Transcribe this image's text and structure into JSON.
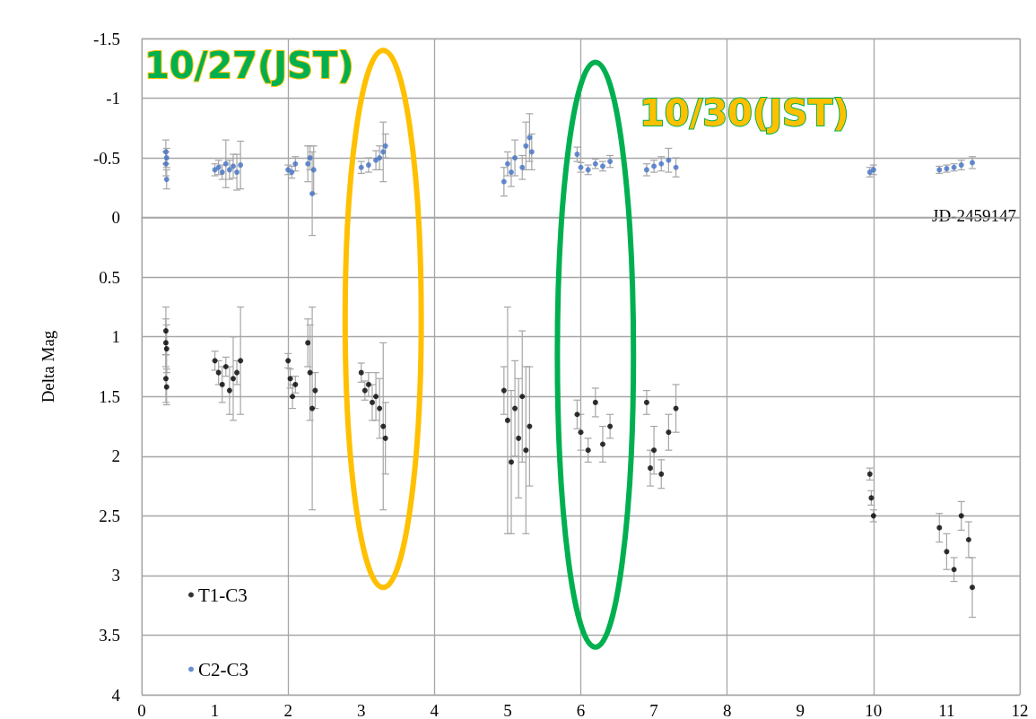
{
  "chart_data": {
    "type": "scatter",
    "xlabel": "JD-2459147",
    "ylabel": "Delta Mag",
    "annotations": [
      "10/27(JST)",
      "10/30(JST)"
    ],
    "xlim": [
      0,
      12
    ],
    "xticks": [
      0,
      1,
      2,
      3,
      4,
      5,
      6,
      7,
      8,
      9,
      10,
      11,
      12
    ],
    "ylim": [
      4,
      -1.5
    ],
    "yticks": [
      -1.5,
      -1,
      -0.5,
      0,
      0.5,
      1,
      1.5,
      2,
      2.5,
      3,
      3.5,
      4
    ],
    "grid": true,
    "legend": "bottom left",
    "marker": "circle",
    "series": [
      {
        "name": "T1-C3",
        "color": "#000000",
        "x": [
          0.33,
          0.33,
          0.34,
          0.33,
          0.34,
          1.0,
          1.05,
          1.1,
          1.15,
          1.2,
          1.25,
          1.3,
          1.35,
          2.0,
          2.03,
          2.06,
          2.1,
          2.27,
          2.3,
          2.33,
          2.37,
          3.0,
          3.05,
          3.1,
          3.15,
          3.2,
          3.25,
          3.3,
          3.33,
          4.95,
          5.0,
          5.05,
          5.1,
          5.15,
          5.2,
          5.25,
          5.3,
          5.95,
          6.0,
          6.1,
          6.2,
          6.3,
          6.4,
          6.9,
          6.95,
          7.0,
          7.1,
          7.2,
          7.3,
          9.95,
          9.97,
          10.0,
          10.9,
          11.0,
          11.1,
          11.2,
          11.3,
          11.35
        ],
        "values": [
          0.95,
          1.05,
          1.1,
          1.35,
          1.42,
          1.2,
          1.3,
          1.4,
          1.25,
          1.45,
          1.35,
          1.3,
          1.2,
          1.2,
          1.35,
          1.5,
          1.4,
          1.05,
          1.3,
          1.6,
          1.45,
          1.3,
          1.45,
          1.4,
          1.55,
          1.5,
          1.6,
          1.75,
          1.85,
          1.45,
          1.7,
          2.05,
          1.6,
          1.85,
          1.5,
          1.95,
          1.75,
          1.65,
          1.8,
          1.95,
          1.55,
          1.9,
          1.75,
          1.55,
          2.1,
          1.95,
          2.15,
          1.8,
          1.6,
          2.15,
          2.35,
          2.5,
          2.6,
          2.8,
          2.95,
          2.5,
          2.7,
          3.1
        ],
        "errors": [
          0.2,
          0.2,
          0.2,
          0.2,
          0.15,
          0.08,
          0.1,
          0.15,
          0.08,
          0.2,
          0.35,
          0.1,
          0.45,
          0.06,
          0.08,
          0.1,
          0.07,
          0.2,
          0.4,
          0.85,
          0.15,
          0.08,
          0.08,
          0.1,
          0.15,
          0.2,
          0.25,
          0.7,
          0.3,
          0.2,
          0.95,
          0.6,
          0.4,
          0.5,
          0.55,
          0.7,
          0.5,
          0.12,
          0.15,
          0.1,
          0.12,
          0.15,
          0.1,
          0.1,
          0.15,
          0.2,
          0.12,
          0.15,
          0.2,
          0.05,
          0.06,
          0.05,
          0.12,
          0.15,
          0.1,
          0.12,
          0.15,
          0.25
        ]
      },
      {
        "name": "C2-C3",
        "color": "#4472c4",
        "x": [
          0.33,
          0.34,
          0.33,
          0.34,
          1.0,
          1.05,
          1.1,
          1.15,
          1.2,
          1.25,
          1.3,
          1.35,
          2.0,
          2.05,
          2.1,
          2.27,
          2.3,
          2.33,
          2.35,
          3.0,
          3.1,
          3.2,
          3.25,
          3.3,
          3.33,
          4.95,
          5.0,
          5.05,
          5.1,
          5.2,
          5.25,
          5.3,
          5.33,
          5.95,
          6.0,
          6.1,
          6.2,
          6.3,
          6.4,
          6.9,
          7.0,
          7.1,
          7.2,
          7.3,
          9.95,
          10.0,
          10.9,
          11.0,
          11.1,
          11.2,
          11.35
        ],
        "values": [
          -0.55,
          -0.5,
          -0.45,
          -0.32,
          -0.4,
          -0.42,
          -0.38,
          -0.45,
          -0.4,
          -0.43,
          -0.38,
          -0.44,
          -0.4,
          -0.38,
          -0.45,
          -0.45,
          -0.5,
          -0.2,
          -0.4,
          -0.42,
          -0.44,
          -0.48,
          -0.5,
          -0.55,
          -0.6,
          -0.3,
          -0.45,
          -0.38,
          -0.5,
          -0.42,
          -0.6,
          -0.67,
          -0.55,
          -0.53,
          -0.42,
          -0.4,
          -0.45,
          -0.43,
          -0.47,
          -0.4,
          -0.43,
          -0.45,
          -0.48,
          -0.42,
          -0.38,
          -0.4,
          -0.4,
          -0.41,
          -0.42,
          -0.44,
          -0.46
        ],
        "errors": [
          0.1,
          0.08,
          0.1,
          0.08,
          0.05,
          0.06,
          0.06,
          0.2,
          0.08,
          0.1,
          0.15,
          0.2,
          0.04,
          0.05,
          0.06,
          0.15,
          0.1,
          0.35,
          0.2,
          0.05,
          0.06,
          0.08,
          0.1,
          0.25,
          0.1,
          0.12,
          0.1,
          0.12,
          0.15,
          0.1,
          0.2,
          0.2,
          0.15,
          0.06,
          0.04,
          0.04,
          0.04,
          0.04,
          0.05,
          0.05,
          0.05,
          0.06,
          0.1,
          0.08,
          0.04,
          0.04,
          0.03,
          0.03,
          0.03,
          0.04,
          0.05
        ]
      }
    ]
  }
}
